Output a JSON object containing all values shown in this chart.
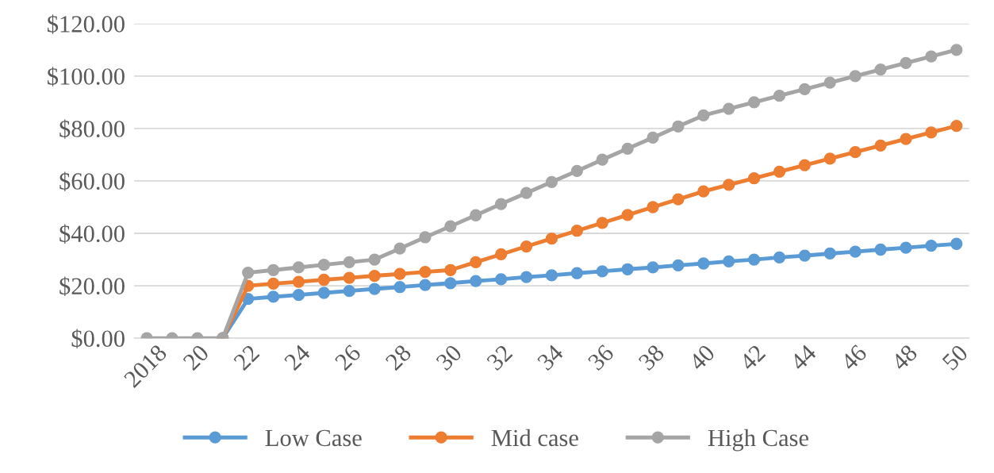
{
  "chart_data": {
    "type": "line",
    "categories": [
      "2018",
      null,
      "20",
      null,
      "22",
      null,
      "24",
      null,
      "26",
      null,
      "28",
      null,
      "30",
      null,
      "32",
      null,
      "34",
      null,
      "36",
      null,
      "38",
      null,
      "40",
      null,
      "42",
      null,
      "44",
      null,
      "46",
      null,
      "48",
      null,
      "50"
    ],
    "series": [
      {
        "name": "Low Case",
        "color": "#5b9bd5",
        "values": [
          null,
          null,
          null,
          0,
          15,
          15.8,
          16.5,
          17.3,
          18,
          18.8,
          19.5,
          20.3,
          21,
          21.8,
          22.5,
          23.3,
          24,
          24.8,
          25.5,
          26.3,
          27,
          27.8,
          28.5,
          29.3,
          30,
          30.8,
          31.5,
          32.3,
          33,
          33.8,
          34.5,
          35.3,
          36
        ]
      },
      {
        "name": "Mid case",
        "color": "#ed7d31",
        "values": [
          null,
          null,
          null,
          0,
          20,
          20.8,
          21.5,
          22.3,
          23,
          23.8,
          24.5,
          25.3,
          26,
          29,
          32,
          35,
          38,
          41,
          44,
          47,
          50,
          53,
          56,
          58.5,
          61,
          63.5,
          66,
          68.5,
          71,
          73.5,
          76,
          78.5,
          81
        ]
      },
      {
        "name": "High Case",
        "color": "#a5a5a5",
        "values": [
          0,
          0,
          0,
          0,
          25,
          26,
          27,
          28,
          29,
          30,
          34.2,
          38.5,
          42.7,
          46.9,
          51.2,
          55.4,
          59.6,
          63.8,
          68.1,
          72.3,
          76.5,
          80.8,
          85,
          87.5,
          90,
          92.5,
          95,
          97.5,
          100,
          102.5,
          105,
          107.5,
          110
        ]
      }
    ],
    "ylim": [
      0,
      120
    ],
    "yticks": [
      {
        "value": 0,
        "label": "$0.00"
      },
      {
        "value": 20,
        "label": "$20.00"
      },
      {
        "value": 40,
        "label": "$40.00"
      },
      {
        "value": 60,
        "label": "$60.00"
      },
      {
        "value": 80,
        "label": "$80.00"
      },
      {
        "value": 100,
        "label": "$100.00"
      },
      {
        "value": 120,
        "label": "$120.00"
      }
    ],
    "grid": "y",
    "legend": "bottom",
    "marker": "circle",
    "line_style": "solid"
  }
}
